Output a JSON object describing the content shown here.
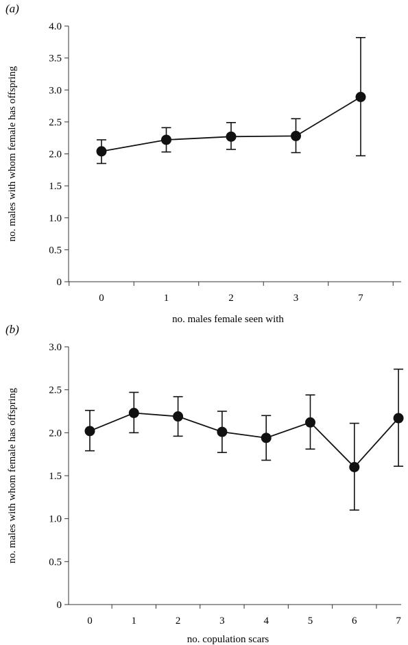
{
  "chart_data": [
    {
      "type": "line",
      "panel_label": "(a)",
      "xlabel": "no. males female seen with",
      "ylabel": "no. males with whom female has offspring",
      "categories": [
        "0",
        "1",
        "2",
        "3",
        "7"
      ],
      "ylim": [
        0,
        4.0
      ],
      "yticks": [
        "0",
        "0.5",
        "1.0",
        "1.5",
        "2.0",
        "2.5",
        "3.0",
        "3.5",
        "4.0"
      ],
      "series": [
        {
          "values": [
            2.04,
            2.22,
            2.27,
            2.28,
            2.89
          ],
          "err_low": [
            1.85,
            2.03,
            2.07,
            2.02,
            1.97
          ],
          "err_high": [
            2.22,
            2.41,
            2.49,
            2.55,
            3.82
          ]
        }
      ],
      "grid": false,
      "color": "#111111"
    },
    {
      "type": "line",
      "panel_label": "(b)",
      "xlabel": "no. copulation scars",
      "ylabel": "no. males with whom female has offspring",
      "categories": [
        "0",
        "1",
        "2",
        "3",
        "4",
        "5",
        "6",
        "7"
      ],
      "ylim": [
        0,
        3.0
      ],
      "yticks": [
        "0",
        "0.5",
        "1.0",
        "1.5",
        "2.0",
        "2.5",
        "3.0"
      ],
      "series": [
        {
          "values": [
            2.02,
            2.23,
            2.19,
            2.01,
            1.94,
            2.12,
            1.6,
            2.17
          ],
          "err_low": [
            1.79,
            2.0,
            1.96,
            1.77,
            1.68,
            1.81,
            1.1,
            1.61
          ],
          "err_high": [
            2.26,
            2.47,
            2.42,
            2.25,
            2.2,
            2.44,
            2.11,
            2.74
          ]
        }
      ],
      "grid": false,
      "color": "#111111"
    }
  ]
}
